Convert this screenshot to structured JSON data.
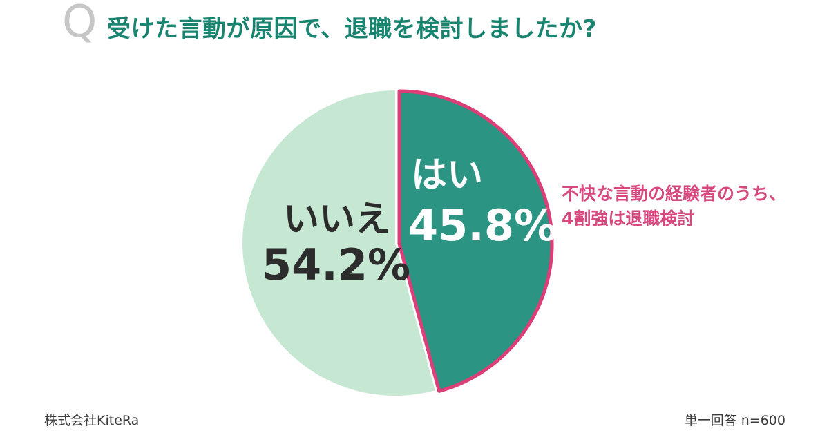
{
  "header": {
    "q_mark": "Q",
    "q_color": "#c6c6c6",
    "title": "受けた言動が原因で、退職を検討しましたか?",
    "title_color": "#19846f"
  },
  "chart_data": {
    "type": "pie",
    "title": "受けた言動が原因で、退職を検討しましたか?",
    "unit": "%",
    "start_angle_deg": 0,
    "direction": "clockwise",
    "outline_color": "#dc3e77",
    "slices": [
      {
        "label": "はい",
        "value": 45.8,
        "display": "45.8%",
        "color": "#2b9483",
        "label_color": "#ffffff",
        "outlined": true
      },
      {
        "label": "いいえ",
        "value": 54.2,
        "display": "54.2%",
        "color": "#c6e8d3",
        "label_color": "#2c2c2c",
        "outlined": false
      }
    ],
    "annotation": {
      "lines": [
        "不快な言動の経験者のうち、",
        "4割強は退職検討"
      ],
      "color": "#d6487e"
    }
  },
  "footer": {
    "company": "株式会社KiteRa",
    "note": "単一回答 n=600"
  }
}
